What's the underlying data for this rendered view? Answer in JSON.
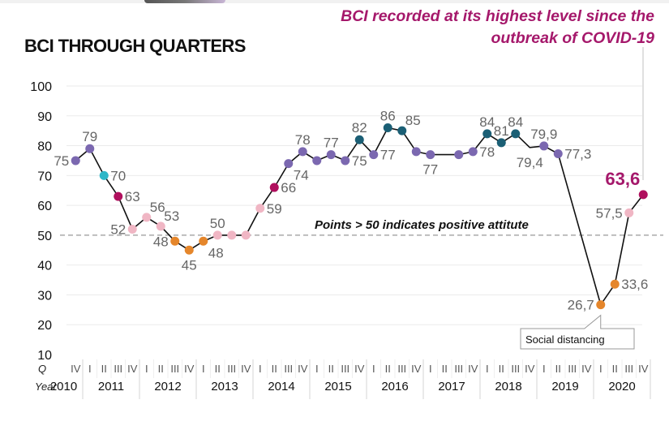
{
  "header": {
    "title": "BCI THROUGH QUARTERS",
    "headline_line1": "BCI recorded at its highest level since the",
    "headline_line2": "outbreak of COVID-19"
  },
  "annotations": {
    "threshold_note": "Points > 50 indicates positive attitute",
    "callout": "Social distancing",
    "q_axis_label": "Q",
    "year_axis_label": "Year"
  },
  "colors": {
    "purple": "#7b68b0",
    "cyan": "#2fb7c8",
    "magenta": "#b0105e",
    "pink": "#f0b6c4",
    "orange": "#e5862b",
    "teal": "#1b5f75",
    "line": "#111111",
    "threshold": "#999999",
    "highlight": "#a5186b"
  },
  "chart_data": {
    "type": "line",
    "title": "BCI THROUGH QUARTERS",
    "xlabel": "Year / Q",
    "ylabel": "",
    "ylim": [
      10,
      100
    ],
    "yticks": [
      100,
      90,
      80,
      70,
      60,
      50,
      40,
      30,
      20,
      10
    ],
    "grid": true,
    "threshold": 50,
    "years": [
      {
        "label": "2010",
        "quarters": [
          "IV"
        ]
      },
      {
        "label": "2011",
        "quarters": [
          "I",
          "II",
          "III",
          "IV"
        ]
      },
      {
        "label": "2012",
        "quarters": [
          "I",
          "II",
          "III",
          "IV"
        ]
      },
      {
        "label": "2013",
        "quarters": [
          "I",
          "II",
          "III",
          "IV"
        ]
      },
      {
        "label": "2014",
        "quarters": [
          "I",
          "II",
          "III",
          "IV"
        ]
      },
      {
        "label": "2015",
        "quarters": [
          "I",
          "II",
          "III",
          "IV"
        ]
      },
      {
        "label": "2016",
        "quarters": [
          "I",
          "II",
          "III",
          "IV"
        ]
      },
      {
        "label": "2017",
        "quarters": [
          "I",
          "II",
          "III",
          "IV"
        ]
      },
      {
        "label": "2018",
        "quarters": [
          "I",
          "II",
          "III",
          "IV"
        ]
      },
      {
        "label": "2019",
        "quarters": [
          "I",
          "II",
          "III",
          "IV"
        ]
      },
      {
        "label": "2020",
        "quarters": [
          "I",
          "II",
          "III",
          "IV"
        ]
      }
    ],
    "series": [
      {
        "name": "BCI",
        "points": [
          {
            "year": 2010,
            "q": "IV",
            "value": 75,
            "label": "75",
            "color": "purple",
            "dot": true,
            "pos": "left"
          },
          {
            "year": 2011,
            "q": "I",
            "value": 79,
            "label": "79",
            "color": "purple",
            "dot": true,
            "pos": "top"
          },
          {
            "year": 2011,
            "q": "II",
            "value": 70,
            "label": "70",
            "color": "cyan",
            "dot": true,
            "pos": "right"
          },
          {
            "year": 2011,
            "q": "III",
            "value": 63,
            "label": "63",
            "color": "magenta",
            "dot": true,
            "pos": "right"
          },
          {
            "year": 2011,
            "q": "IV",
            "value": 52,
            "label": "52",
            "color": "pink",
            "dot": true,
            "pos": "left"
          },
          {
            "year": 2012,
            "q": "I",
            "value": 56,
            "label": "56",
            "color": "pink",
            "dot": true,
            "pos": "topright"
          },
          {
            "year": 2012,
            "q": "II",
            "value": 53,
            "label": "53",
            "color": "pink",
            "dot": true,
            "pos": "topright"
          },
          {
            "year": 2012,
            "q": "III",
            "value": 48,
            "label": "48",
            "color": "orange",
            "dot": true,
            "pos": "left"
          },
          {
            "year": 2012,
            "q": "IV",
            "value": 45,
            "label": "45",
            "color": "orange",
            "dot": true,
            "pos": "bottom"
          },
          {
            "year": 2013,
            "q": "I",
            "value": 48,
            "label": "48",
            "color": "orange",
            "dot": true,
            "pos": "bottomright"
          },
          {
            "year": 2013,
            "q": "II",
            "value": 50,
            "label": "50",
            "color": "pink",
            "dot": true,
            "pos": "top"
          },
          {
            "year": 2013,
            "q": "III",
            "value": 50,
            "label": "",
            "color": "pink",
            "dot": true,
            "pos": "none"
          },
          {
            "year": 2013,
            "q": "IV",
            "value": 50,
            "label": "",
            "color": "pink",
            "dot": true,
            "pos": "none"
          },
          {
            "year": 2014,
            "q": "I",
            "value": 59,
            "label": "59",
            "color": "pink",
            "dot": true,
            "pos": "right"
          },
          {
            "year": 2014,
            "q": "II",
            "value": 66,
            "label": "66",
            "color": "magenta",
            "dot": true,
            "pos": "right"
          },
          {
            "year": 2014,
            "q": "III",
            "value": 74,
            "label": "74",
            "color": "purple",
            "dot": true,
            "pos": "bottomright"
          },
          {
            "year": 2014,
            "q": "IV",
            "value": 78,
            "label": "78",
            "color": "purple",
            "dot": true,
            "pos": "top"
          },
          {
            "year": 2015,
            "q": "I",
            "value": 75,
            "label": "",
            "color": "purple",
            "dot": true,
            "pos": "none"
          },
          {
            "year": 2015,
            "q": "II",
            "value": 77,
            "label": "77",
            "color": "purple",
            "dot": true,
            "pos": "top"
          },
          {
            "year": 2015,
            "q": "III",
            "value": 75,
            "label": "75",
            "color": "purple",
            "dot": true,
            "pos": "right"
          },
          {
            "year": 2015,
            "q": "IV",
            "value": 82,
            "label": "82",
            "color": "teal",
            "dot": true,
            "pos": "top"
          },
          {
            "year": 2016,
            "q": "I",
            "value": 77,
            "label": "77",
            "color": "purple",
            "dot": true,
            "pos": "right"
          },
          {
            "year": 2016,
            "q": "II",
            "value": 86,
            "label": "86",
            "color": "teal",
            "dot": true,
            "pos": "top"
          },
          {
            "year": 2016,
            "q": "III",
            "value": 85,
            "label": "85",
            "color": "teal",
            "dot": true,
            "pos": "topright"
          },
          {
            "year": 2016,
            "q": "IV",
            "value": 78,
            "label": "",
            "color": "purple",
            "dot": true,
            "pos": "none"
          },
          {
            "year": 2017,
            "q": "I",
            "value": 77,
            "label": "77",
            "color": "purple",
            "dot": true,
            "pos": "bottom"
          },
          {
            "year": 2017,
            "q": "II",
            "value": 77,
            "label": "",
            "color": "purple",
            "dot": false,
            "pos": "none"
          },
          {
            "year": 2017,
            "q": "III",
            "value": 77,
            "label": "",
            "color": "purple",
            "dot": true,
            "pos": "none"
          },
          {
            "year": 2017,
            "q": "IV",
            "value": 78,
            "label": "78",
            "color": "purple",
            "dot": true,
            "pos": "right"
          },
          {
            "year": 2018,
            "q": "I",
            "value": 84,
            "label": "84",
            "color": "teal",
            "dot": true,
            "pos": "top"
          },
          {
            "year": 2018,
            "q": "II",
            "value": 81,
            "label": "81",
            "color": "teal",
            "dot": true,
            "pos": "top"
          },
          {
            "year": 2018,
            "q": "III",
            "value": 84,
            "label": "84",
            "color": "teal",
            "dot": true,
            "pos": "top"
          },
          {
            "year": 2018,
            "q": "IV",
            "value": 79.4,
            "label": "79,4",
            "color": "purple",
            "dot": false,
            "pos": "bottom"
          },
          {
            "year": 2019,
            "q": "I",
            "value": 79.9,
            "label": "79,9",
            "color": "purple",
            "dot": true,
            "pos": "top"
          },
          {
            "year": 2019,
            "q": "II",
            "value": 77.3,
            "label": "77,3",
            "color": "purple",
            "dot": true,
            "pos": "right"
          },
          {
            "year": 2019,
            "q": "III",
            "value": null,
            "label": "",
            "color": "purple",
            "dot": false,
            "pos": "none"
          },
          {
            "year": 2019,
            "q": "IV",
            "value": null,
            "label": "",
            "color": "purple",
            "dot": false,
            "pos": "none"
          },
          {
            "year": 2020,
            "q": "I",
            "value": 26.7,
            "label": "26,7",
            "color": "orange",
            "dot": true,
            "pos": "left"
          },
          {
            "year": 2020,
            "q": "II",
            "value": 33.6,
            "label": "33,6",
            "color": "orange",
            "dot": true,
            "pos": "right"
          },
          {
            "year": 2020,
            "q": "III",
            "value": 57.5,
            "label": "57,5",
            "color": "pink",
            "dot": true,
            "pos": "left"
          },
          {
            "year": 2020,
            "q": "IV",
            "value": 63.6,
            "label": "63,6",
            "color": "magenta",
            "dot": true,
            "pos": "tophl"
          }
        ]
      }
    ]
  }
}
